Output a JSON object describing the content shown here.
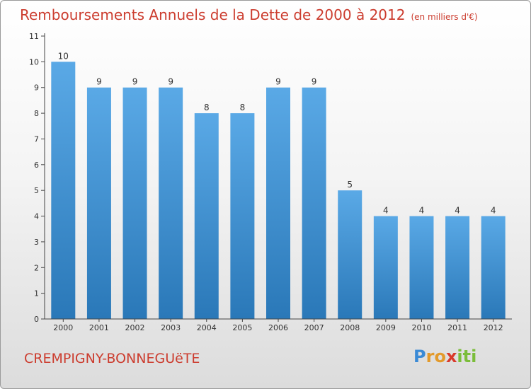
{
  "chart_data": {
    "type": "bar",
    "title": "Remboursements Annuels de la Dette de 2000 à 2012",
    "subtitle": "(en milliers d'€)",
    "categories": [
      "2000",
      "2001",
      "2002",
      "2003",
      "2004",
      "2005",
      "2006",
      "2007",
      "2008",
      "2009",
      "2010",
      "2011",
      "2012"
    ],
    "values": [
      10,
      9,
      9,
      9,
      8,
      8,
      9,
      9,
      5,
      4,
      4,
      4,
      4
    ],
    "data_labels": [
      "10",
      "9",
      "9",
      "9",
      "8",
      "8",
      "9",
      "9",
      "5",
      "4",
      "4",
      "4",
      "4"
    ],
    "y_ticks": [
      0,
      1,
      2,
      3,
      4,
      5,
      6,
      7,
      8,
      9,
      10,
      11
    ],
    "ylim": [
      0,
      11
    ],
    "xlabel": "",
    "ylabel": "",
    "grid": false,
    "bar_color": "#5aa9e6",
    "bar_color_dark": "#2a78b8"
  },
  "place_name": "CREMPIGNY-BONNEGUëTE",
  "logo": {
    "letters": [
      "P",
      "r",
      "o",
      "x",
      "i",
      "t",
      "i"
    ],
    "colors": [
      "#3a8ad6",
      "#e39a2b",
      "#e39a2b",
      "#d93a2c",
      "#7bbd3a",
      "#7bbd3a",
      "#7bbd3a"
    ]
  },
  "colors": {
    "title": "#cc3d2f",
    "axis": "#333333"
  }
}
